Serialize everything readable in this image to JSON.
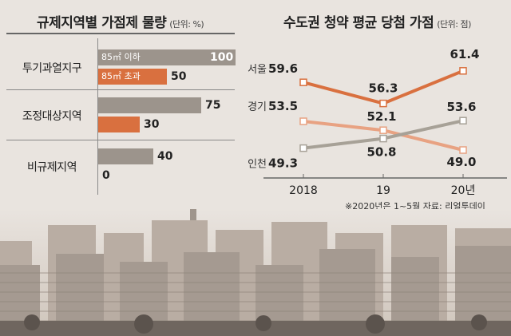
{
  "left": {
    "title": "규제지역별 가점제 물량",
    "unit": "(단위: %)"
  },
  "right": {
    "title": "수도권 청약 평균 당첨 가점",
    "unit": "(단위: 점)",
    "footnote": "※2020년은 1~5월  자료: 리얼투데이"
  },
  "colors": {
    "bar_series_1": "#9c948c",
    "bar_series_2": "#d9703f",
    "line_seoul": "#d9703f",
    "line_gyeonggi": "#e8a282",
    "line_incheon": "#a7a197"
  },
  "chart_data": [
    {
      "type": "bar",
      "orientation": "horizontal",
      "title": "규제지역별 가점제 물량",
      "unit": "(단위: %)",
      "categories": [
        "투기과열지구",
        "조정대상지역",
        "비규제지역"
      ],
      "series": [
        {
          "name": "85㎡ 이하",
          "values": [
            100,
            75,
            40
          ]
        },
        {
          "name": "85㎡ 초과",
          "values": [
            50,
            30,
            0
          ]
        }
      ],
      "xlim": [
        0,
        100
      ]
    },
    {
      "type": "line",
      "title": "수도권 청약 평균 당첨 가점",
      "unit": "(단위: 점)",
      "x": [
        "2018",
        "19",
        "20년"
      ],
      "series": [
        {
          "name": "서울",
          "values": [
            59.6,
            56.3,
            61.4
          ]
        },
        {
          "name": "경기",
          "values": [
            53.5,
            52.1,
            49.0
          ]
        },
        {
          "name": "인천",
          "values": [
            49.3,
            50.8,
            53.6
          ]
        }
      ]
    }
  ]
}
